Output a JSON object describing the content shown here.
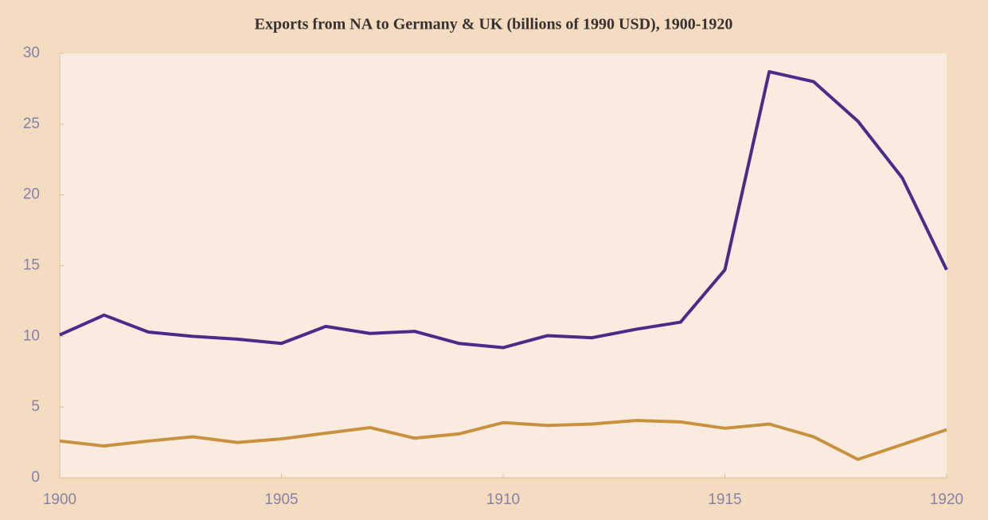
{
  "chart_data": {
    "type": "line",
    "title": "Exports from NA to Germany & UK (billions of 1990 USD), 1900-1920",
    "x": [
      1900,
      1901,
      1902,
      1903,
      1904,
      1905,
      1906,
      1907,
      1908,
      1909,
      1910,
      1911,
      1912,
      1913,
      1914,
      1915,
      1916,
      1917,
      1918,
      1919,
      1920
    ],
    "series": [
      {
        "color": "#4b2a8a",
        "values": [
          10.1,
          11.5,
          10.3,
          10.0,
          9.8,
          9.5,
          10.7,
          10.2,
          10.35,
          9.5,
          9.2,
          10.05,
          9.9,
          10.5,
          11.0,
          14.7,
          28.7,
          28.0,
          25.2,
          21.2,
          14.7
        ]
      },
      {
        "color": "#c8913f",
        "values": [
          2.6,
          2.25,
          2.6,
          2.9,
          2.5,
          2.75,
          3.15,
          3.55,
          2.8,
          3.1,
          3.9,
          3.7,
          3.8,
          4.05,
          3.95,
          3.5,
          3.8,
          2.9,
          1.3,
          2.35,
          3.4
        ]
      }
    ],
    "xlim": [
      1900,
      1920
    ],
    "xticks": [
      1900,
      1905,
      1910,
      1915,
      1920
    ],
    "ylim": [
      0,
      30
    ],
    "yticks": [
      0,
      5,
      10,
      15,
      20,
      25,
      30
    ]
  }
}
